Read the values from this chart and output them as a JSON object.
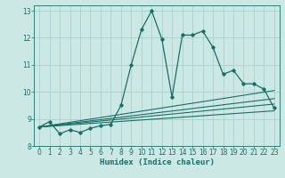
{
  "xlabel": "Humidex (Indice chaleur)",
  "bg_color": "#cce8e4",
  "grid_color": "#aacfcc",
  "line_color": "#1a6e68",
  "xlim": [
    -0.5,
    23.5
  ],
  "ylim": [
    8,
    13.2
  ],
  "xticks": [
    0,
    1,
    2,
    3,
    4,
    5,
    6,
    7,
    8,
    9,
    10,
    11,
    12,
    13,
    14,
    15,
    16,
    17,
    18,
    19,
    20,
    21,
    22,
    23
  ],
  "yticks": [
    8,
    9,
    10,
    11,
    12,
    13
  ],
  "main_series_x": [
    0,
    1,
    2,
    3,
    4,
    5,
    6,
    7,
    8,
    9,
    10,
    11,
    12,
    13,
    14,
    15,
    16,
    17,
    18,
    19,
    20,
    21,
    22,
    23
  ],
  "main_series_y": [
    8.7,
    8.9,
    8.45,
    8.6,
    8.5,
    8.65,
    8.75,
    8.8,
    9.5,
    11.0,
    12.3,
    13.0,
    11.95,
    9.8,
    12.1,
    12.1,
    12.25,
    11.65,
    10.65,
    10.8,
    10.3,
    10.3,
    10.1,
    9.4
  ],
  "trend1_x": [
    0,
    23
  ],
  "trend1_y": [
    8.7,
    9.3
  ],
  "trend2_x": [
    0,
    23
  ],
  "trend2_y": [
    8.7,
    9.55
  ],
  "trend3_x": [
    0,
    23
  ],
  "trend3_y": [
    8.7,
    9.75
  ],
  "trend4_x": [
    0,
    23
  ],
  "trend4_y": [
    8.7,
    10.05
  ]
}
